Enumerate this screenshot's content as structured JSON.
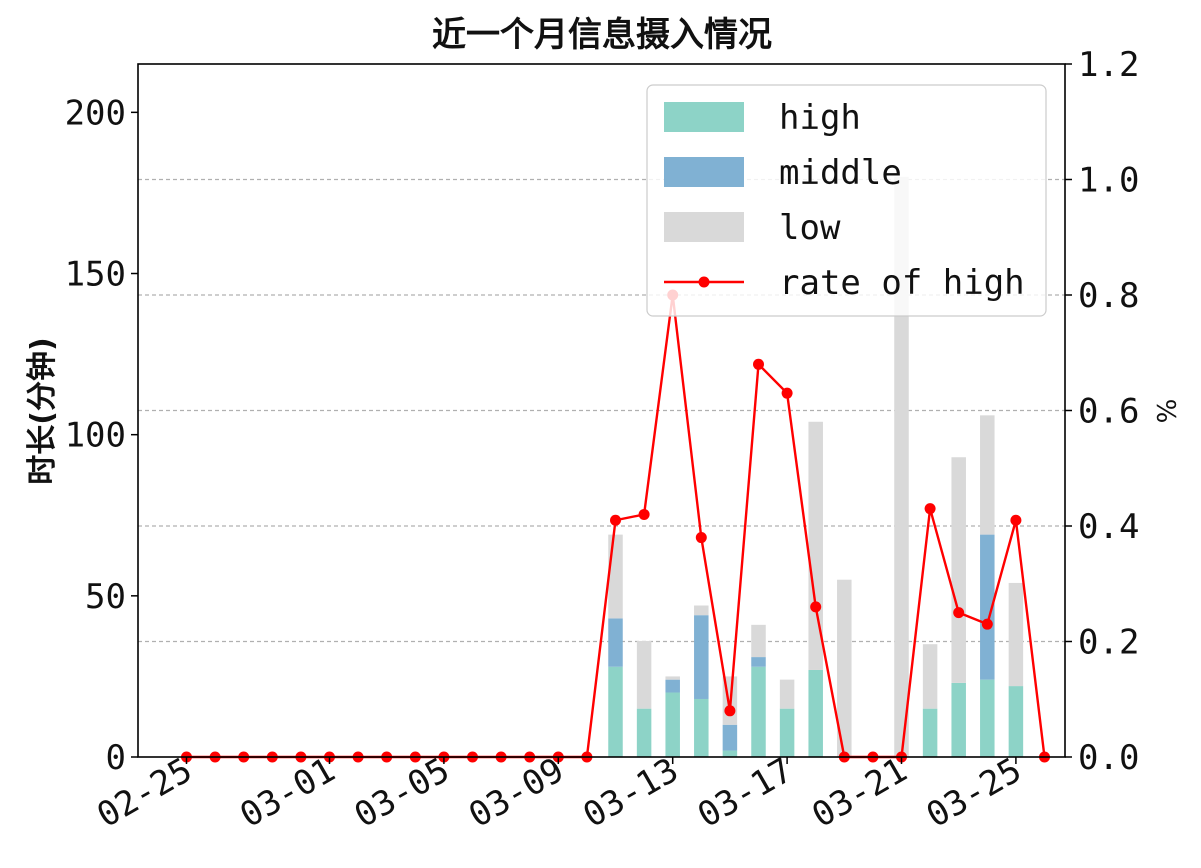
{
  "chart_data": {
    "type": "bar",
    "title": "近一个月信息摄入情况",
    "ylabel": "时长(分钟)",
    "y2label": "%",
    "ylim": [
      0,
      215
    ],
    "y2lim": [
      0,
      1.2
    ],
    "yticks": [
      "0",
      "50",
      "100",
      "150",
      "200"
    ],
    "y2ticks": [
      "0.0",
      "0.2",
      "0.4",
      "0.6",
      "0.8",
      "1.0",
      "1.2"
    ],
    "xticks": [
      "02-25",
      "03-01",
      "03-05",
      "03-09",
      "03-13",
      "03-17",
      "03-21",
      "03-25"
    ],
    "stacked": true,
    "grid": "horizontal dashed (secondary axis)",
    "legend_position": "top-right",
    "categories": [
      "02-25",
      "02-26",
      "02-27",
      "02-28",
      "02-29",
      "03-01",
      "03-02",
      "03-03",
      "03-04",
      "03-05",
      "03-06",
      "03-07",
      "03-08",
      "03-09",
      "03-10",
      "03-11",
      "03-12",
      "03-13",
      "03-14",
      "03-15",
      "03-16",
      "03-17",
      "03-18",
      "03-19",
      "03-20",
      "03-21",
      "03-22",
      "03-23",
      "03-24",
      "03-25",
      "03-26"
    ],
    "series": [
      {
        "name": "high",
        "color": "#8dd3c7",
        "values": [
          0,
          0,
          0,
          0,
          0,
          0,
          0,
          0,
          0,
          0,
          0,
          0,
          0,
          0,
          0,
          28,
          15,
          20,
          18,
          2,
          28,
          15,
          27,
          0,
          0,
          0,
          15,
          23,
          24,
          22,
          0
        ]
      },
      {
        "name": "middle",
        "color": "#80b1d3",
        "values": [
          0,
          0,
          0,
          0,
          0,
          0,
          0,
          0,
          0,
          0,
          0,
          0,
          0,
          0,
          0,
          15,
          0,
          4,
          26,
          8,
          3,
          0,
          0,
          0,
          0,
          0,
          0,
          0,
          45,
          0,
          0
        ]
      },
      {
        "name": "low",
        "color": "#d9d9d9",
        "values": [
          0,
          0,
          0,
          0,
          0,
          0,
          0,
          0,
          0,
          0,
          0,
          0,
          0,
          0,
          0,
          26,
          21,
          1,
          3,
          15,
          10,
          9,
          77,
          55,
          0,
          180,
          20,
          70,
          37,
          32,
          0
        ]
      },
      {
        "name": "rate of high",
        "color": "#ff0000",
        "axis": "right",
        "type": "line",
        "values": [
          0,
          0,
          0,
          0,
          0,
          0,
          0,
          0,
          0,
          0,
          0,
          0,
          0,
          0,
          0,
          0.41,
          0.42,
          0.8,
          0.38,
          0.08,
          0.68,
          0.63,
          0.26,
          0,
          0,
          0,
          0.43,
          0.25,
          0.23,
          0.41,
          0
        ]
      }
    ]
  }
}
